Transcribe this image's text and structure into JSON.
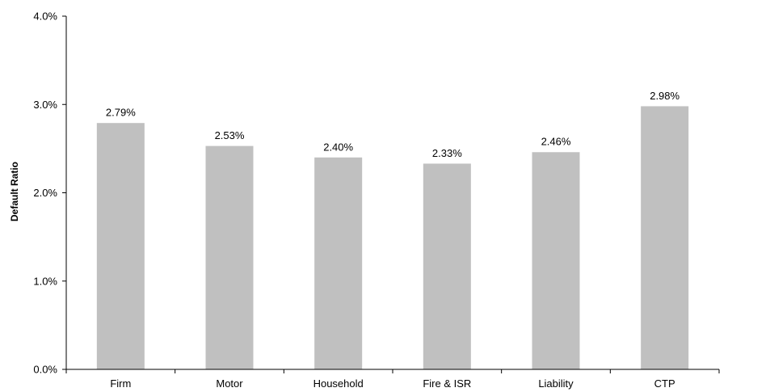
{
  "chart_data": {
    "type": "bar",
    "categories": [
      "Firm",
      "Motor",
      "Household",
      "Fire & ISR",
      "Liability",
      "CTP"
    ],
    "values": [
      2.79,
      2.53,
      2.4,
      2.33,
      2.46,
      2.98
    ],
    "data_labels": [
      "2.79%",
      "2.53%",
      "2.40%",
      "2.33%",
      "2.46%",
      "2.98%"
    ],
    "title": "",
    "xlabel": "",
    "ylabel": "Default Ratio",
    "ylim": [
      0,
      4
    ],
    "yticks": [
      0,
      1,
      2,
      3,
      4
    ],
    "ytick_labels": [
      "0.0%",
      "1.0%",
      "2.0%",
      "3.0%",
      "4.0%"
    ],
    "grid": false,
    "legend": "none",
    "bar_color": "#c0c0c0"
  }
}
